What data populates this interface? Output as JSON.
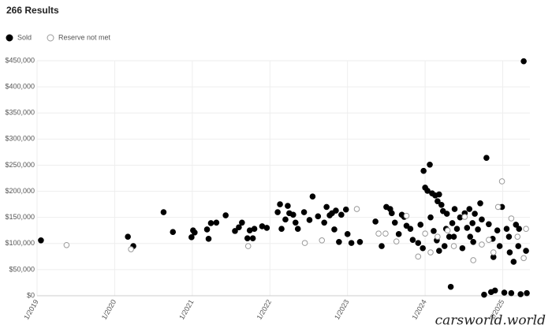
{
  "chart_data": {
    "type": "scatter",
    "title": "266 Results",
    "watermark": "carsworld.world",
    "xlim": [
      2019,
      2025.35
    ],
    "ylim": [
      0,
      450000
    ],
    "xticks": [
      {
        "value": 2019,
        "label": "1/2019"
      },
      {
        "value": 2020,
        "label": "1/2020"
      },
      {
        "value": 2021,
        "label": "1/2021"
      },
      {
        "value": 2022,
        "label": "1/2022"
      },
      {
        "value": 2023,
        "label": "1/2023"
      },
      {
        "value": 2024,
        "label": "1/2024"
      },
      {
        "value": 2025,
        "label": "1/2025"
      }
    ],
    "yticks": [
      {
        "value": 0,
        "label": "$0"
      },
      {
        "value": 50000,
        "label": "$50,000"
      },
      {
        "value": 100000,
        "label": "$100,000"
      },
      {
        "value": 150000,
        "label": "$150,000"
      },
      {
        "value": 200000,
        "label": "$200,000"
      },
      {
        "value": 250000,
        "label": "$250,000"
      },
      {
        "value": 300000,
        "label": "$300,000"
      },
      {
        "value": 350000,
        "label": "$350,000"
      },
      {
        "value": 400000,
        "label": "$400,000"
      },
      {
        "value": 450000,
        "label": "$450,000"
      }
    ],
    "grid": true,
    "series": [
      {
        "name": "Sold",
        "color": "#000000",
        "filled": true,
        "x": [
          2019.05,
          2020.17,
          2020.24,
          2020.63,
          2020.75,
          2020.99,
          2021.01,
          2021.03,
          2021.19,
          2021.21,
          2021.24,
          2021.31,
          2021.43,
          2021.55,
          2021.6,
          2021.64,
          2021.71,
          2021.74,
          2021.78,
          2021.8,
          2021.9,
          2021.96,
          2022.1,
          2022.13,
          2022.15,
          2022.2,
          2022.23,
          2022.25,
          2022.3,
          2022.33,
          2022.36,
          2022.44,
          2022.51,
          2022.55,
          2022.62,
          2022.7,
          2022.73,
          2022.77,
          2022.8,
          2022.83,
          2022.85,
          2022.89,
          2022.92,
          2022.98,
          2023.0,
          2023.05,
          2023.16,
          2023.36,
          2023.44,
          2023.5,
          2023.55,
          2023.57,
          2023.61,
          2023.66,
          2023.7,
          2023.73,
          2023.76,
          2023.81,
          2023.84,
          2023.91,
          2023.94,
          2023.97,
          2023.98,
          2024.0,
          2024.03,
          2024.06,
          2024.09,
          2024.13,
          2024.16,
          2024.18,
          2024.21,
          2024.07,
          2024.11,
          2024.15,
          2024.18,
          2024.23,
          2024.25,
          2024.28,
          2024.31,
          2024.33,
          2024.35,
          2024.38,
          2024.41,
          2024.45,
          2024.48,
          2024.51,
          2024.54,
          2024.57,
          2024.58,
          2024.61,
          2024.64,
          2024.68,
          2024.71,
          2024.73,
          2024.76,
          2024.79,
          2024.82,
          2024.85,
          2024.87,
          2024.9,
          2024.93,
          2024.96,
          2024.99,
          2025.02,
          2025.05,
          2025.08,
          2025.11,
          2025.14,
          2025.17,
          2025.2,
          2025.23,
          2025.27,
          2025.3,
          2025.31,
          2025.21,
          2024.27,
          2024.37,
          2024.62,
          2024.88,
          2025.09
        ],
        "values": [
          106000,
          113000,
          95000,
          160000,
          122000,
          112000,
          125000,
          121000,
          127000,
          109000,
          139000,
          140000,
          154000,
          124000,
          131000,
          140000,
          110000,
          125000,
          110000,
          128000,
          133000,
          130000,
          160000,
          175000,
          128000,
          146000,
          172000,
          158000,
          155000,
          140000,
          128000,
          160000,
          145000,
          190000,
          152000,
          140000,
          170000,
          154000,
          158000,
          127000,
          163000,
          103000,
          155000,
          165000,
          118000,
          101000,
          103000,
          142000,
          95000,
          170000,
          166000,
          158000,
          140000,
          118000,
          155000,
          151000,
          134000,
          128000,
          107000,
          101000,
          136000,
          91000,
          239000,
          207000,
          201000,
          251000,
          196000,
          192000,
          181000,
          194000,
          174000,
          150000,
          124000,
          106000,
          86000,
          162000,
          95000,
          157000,
          113000,
          17000,
          139000,
          166000,
          128000,
          150000,
          91000,
          158000,
          130000,
          166000,
          113000,
          139000,
          157000,
          127000,
          177000,
          146000,
          2000,
          264000,
          137000,
          7000,
          109000,
          10000,
          125000,
          95000,
          170000,
          6000,
          128000,
          113000,
          5000,
          65000,
          136000,
          95000,
          3000,
          449000,
          86000,
          5000,
          128000,
          128000,
          113000,
          103000,
          74000,
          83000
        ]
      },
      {
        "name": "Reserve not met",
        "color": "#9a9a9a",
        "filled": false,
        "x": [
          2019.38,
          2020.21,
          2021.72,
          2022.45,
          2022.67,
          2023.12,
          2023.4,
          2023.49,
          2023.63,
          2023.76,
          2023.91,
          2024.0,
          2024.07,
          2024.16,
          2024.29,
          2024.37,
          2024.51,
          2024.62,
          2024.73,
          2024.88,
          2024.99,
          2025.11,
          2025.19,
          2025.27,
          2025.3,
          2024.82,
          2024.94
        ],
        "values": [
          97000,
          89000,
          95000,
          101000,
          106000,
          166000,
          119000,
          119000,
          104000,
          153000,
          75000,
          119000,
          83000,
          113000,
          125000,
          95000,
          151000,
          68000,
          98000,
          83000,
          219000,
          148000,
          113000,
          72000,
          128000,
          107000,
          170000
        ]
      }
    ]
  }
}
